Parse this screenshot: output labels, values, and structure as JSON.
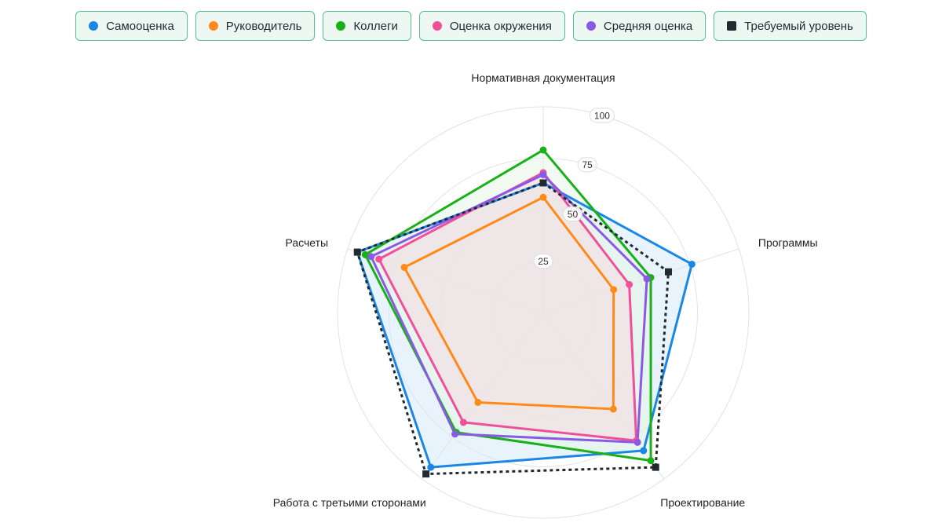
{
  "chart_data": {
    "type": "radar",
    "axes": [
      "Нормативная документация",
      "Программы",
      "Проектирование",
      "Работа с третьими сторонами",
      "Расчеты"
    ],
    "rlim": [
      0,
      100
    ],
    "tick_values": [
      25,
      50,
      75,
      100
    ],
    "tick_labels": [
      "25",
      "50",
      "75",
      "100"
    ],
    "grid": true,
    "legend_position": "top",
    "series": [
      {
        "name": "Самооценка",
        "color": "#1a87e6",
        "marker": "circle",
        "dash": false,
        "fill": "#d6eaf8",
        "values": [
          63,
          76,
          83,
          93,
          95
        ]
      },
      {
        "name": "Руководитель",
        "color": "#ff8a1a",
        "marker": "circle",
        "dash": false,
        "fill": null,
        "values": [
          56,
          36,
          58,
          54,
          71
        ]
      },
      {
        "name": "Коллеги",
        "color": "#1ab01a",
        "marker": "circle",
        "dash": false,
        "fill": "#e6f6e6",
        "values": [
          79,
          55,
          89,
          72,
          91
        ]
      },
      {
        "name": "Оценка окружения",
        "color": "#f0509a",
        "marker": "circle",
        "dash": false,
        "fill": "#f5d9e0",
        "values": [
          68,
          44,
          77,
          66,
          84
        ]
      },
      {
        "name": "Средняя оценка",
        "color": "#8a5ae6",
        "marker": "circle",
        "dash": false,
        "fill": null,
        "values": [
          67,
          53,
          78,
          73,
          88
        ]
      },
      {
        "name": "Требуемый уровень",
        "color": "#222a30",
        "marker": "square",
        "dash": true,
        "fill": null,
        "values": [
          63,
          64,
          93,
          97,
          95
        ]
      }
    ]
  }
}
